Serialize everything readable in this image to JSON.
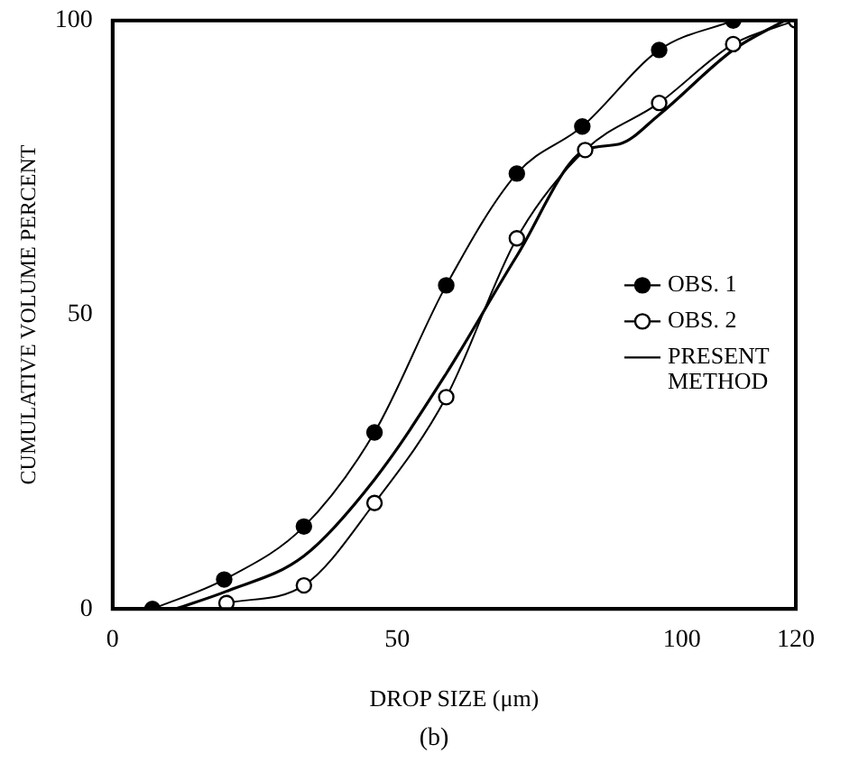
{
  "chart_data": {
    "type": "line",
    "xlabel": "DROP SIZE (μm)",
    "ylabel": "CUMULATIVE VOLUME PERCENT",
    "annotations": [
      "(b)"
    ],
    "xlim": [
      0,
      120
    ],
    "xticks": [
      0,
      50,
      100,
      120
    ],
    "ylim": [
      0,
      100
    ],
    "yticks": [
      0,
      50,
      100
    ],
    "grid": false,
    "legend": "right",
    "series": [
      {
        "name": "OBS. 1",
        "color": "#000000",
        "marker": "circle",
        "x": [
          7,
          19.6,
          33.6,
          46,
          58.6,
          71,
          82.5,
          96,
          109
        ],
        "values": [
          0,
          5,
          14,
          30,
          55,
          74,
          82,
          95,
          100
        ]
      },
      {
        "name": "OBS. 2",
        "color": "#000000",
        "marker": "circle",
        "colors": [
          "#ffffff",
          "#ffffff",
          "#ffffff",
          "#ffffff",
          "#ffffff",
          "#ffffff",
          "#ffffff",
          "#ffffff",
          "#ffffff"
        ],
        "x": [
          20,
          33.6,
          46,
          58.6,
          71,
          83,
          96,
          109,
          120
        ],
        "values": [
          1,
          4,
          18,
          36,
          63,
          78,
          86,
          96,
          100
        ]
      },
      {
        "name": "PRESENT METHOD",
        "color": "#000000",
        "marker": "none",
        "x": [
          11,
          20,
          33.6,
          46,
          58.6,
          71,
          83,
          89,
          96,
          109,
          118
        ],
        "values": [
          0,
          3,
          9,
          22,
          40,
          60,
          78,
          79,
          84,
          95,
          100
        ]
      }
    ]
  }
}
